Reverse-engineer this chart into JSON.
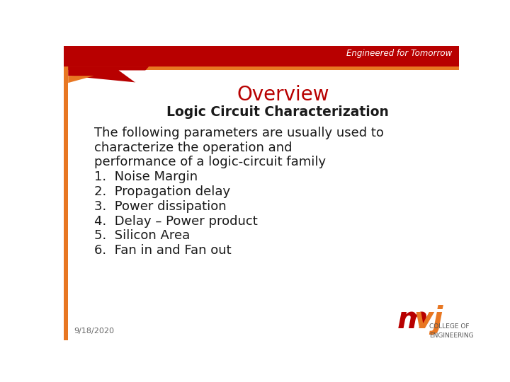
{
  "title": "Overview",
  "subtitle": "Logic Circuit Characterization",
  "intro_lines": [
    "The following parameters are usually used to",
    "characterize the operation and",
    "performance of a logic-circuit family"
  ],
  "list_items": [
    "1.  Noise Margin",
    "2.  Propagation delay",
    "3.  Power dissipation",
    "4.  Delay – Power product",
    "5.  Silicon Area",
    "6.  Fan in and Fan out"
  ],
  "footer_date": "9/18/2020",
  "header_text": "Engineered for Tomorrow",
  "bg_color": "#ffffff",
  "header_dark_red": "#b80000",
  "header_orange": "#e87722",
  "title_color": "#b80000",
  "subtitle_color": "#1a1a1a",
  "body_color": "#1a1a1a",
  "mvj_m_color": "#b80000",
  "mvj_vj_color": "#e87722"
}
